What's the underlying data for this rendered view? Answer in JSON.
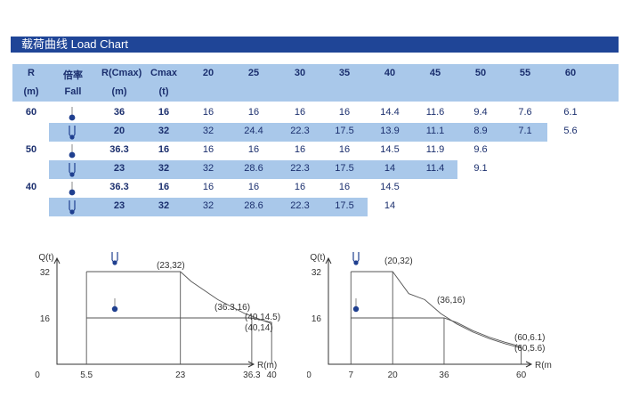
{
  "title": "载荷曲线  Load Chart",
  "header": {
    "r_label": "R",
    "r_unit": "(m)",
    "fall_cn": "倍率",
    "fall_en": "Fall",
    "rcmax_label": "R(Cmax)",
    "rcmax_unit": "(m)",
    "cmax_label": "Cmax",
    "cmax_unit": "(t)",
    "radii": [
      "20",
      "25",
      "30",
      "35",
      "40",
      "45",
      "50",
      "55",
      "60"
    ]
  },
  "groups": [
    "60",
    "50",
    "40"
  ],
  "rows": [
    {
      "hook": "single-fall",
      "rcmax": "36",
      "cmax": "16",
      "loads": [
        "16",
        "16",
        "16",
        "16",
        "14.4",
        "11.6",
        "9.4",
        "7.6",
        "6.1"
      ]
    },
    {
      "hook": "double-fall",
      "rcmax": "20",
      "cmax": "32",
      "loads": [
        "32",
        "24.4",
        "22.3",
        "17.5",
        "13.9",
        "11.1",
        "8.9",
        "7.1",
        "5.6"
      ]
    },
    {
      "hook": "single-fall",
      "rcmax": "36.3",
      "cmax": "16",
      "loads": [
        "16",
        "16",
        "16",
        "16",
        "14.5",
        "11.9",
        "9.6"
      ]
    },
    {
      "hook": "double-fall",
      "rcmax": "23",
      "cmax": "32",
      "loads": [
        "32",
        "28.6",
        "22.3",
        "17.5",
        "14",
        "11.4",
        "9.1"
      ]
    },
    {
      "hook": "single-fall",
      "rcmax": "36.3",
      "cmax": "16",
      "loads": [
        "16",
        "16",
        "16",
        "16",
        "14.5"
      ]
    },
    {
      "hook": "double-fall",
      "rcmax": "23",
      "cmax": "32",
      "loads": [
        "32",
        "28.6",
        "22.3",
        "17.5",
        "14"
      ]
    }
  ],
  "chart_data": [
    {
      "type": "line",
      "xlabel": "R(m)",
      "ylabel": "Q(t)",
      "x_ticks": [
        "0",
        "5.5",
        "23",
        "36.3",
        "40"
      ],
      "y_ticks": [
        "32",
        "16"
      ],
      "series": [
        {
          "values": [
            [
              5.5,
              32
            ],
            [
              23,
              32
            ],
            [
              25,
              28.6
            ],
            [
              30,
              22.3
            ],
            [
              35,
              17.5
            ],
            [
              40,
              14
            ]
          ]
        },
        {
          "values": [
            [
              5.5,
              16
            ],
            [
              36.3,
              16
            ],
            [
              40,
              14.5
            ]
          ]
        }
      ],
      "annotations": [
        "(23,32)",
        "(36.3,16)",
        "(40,14.5)",
        "(40,14)"
      ]
    },
    {
      "type": "line",
      "xlabel": "R(m)",
      "ylabel": "Q(t)",
      "x_ticks": [
        "0",
        "7",
        "20",
        "36",
        "60"
      ],
      "y_ticks": [
        "32",
        "16"
      ],
      "series": [
        {
          "values": [
            [
              7,
              32
            ],
            [
              20,
              32
            ],
            [
              25,
              24.4
            ],
            [
              30,
              22.3
            ],
            [
              35,
              17.5
            ],
            [
              40,
              13.9
            ],
            [
              45,
              11.1
            ],
            [
              50,
              8.9
            ],
            [
              55,
              7.1
            ],
            [
              60,
              5.6
            ]
          ]
        },
        {
          "values": [
            [
              7,
              16
            ],
            [
              36,
              16
            ],
            [
              40,
              14.4
            ],
            [
              45,
              11.6
            ],
            [
              50,
              9.4
            ],
            [
              55,
              7.6
            ],
            [
              60,
              6.1
            ]
          ]
        }
      ],
      "annotations": [
        "(20,32)",
        "(36,16)",
        "(60,6.1)",
        "(60,5.6)"
      ]
    }
  ]
}
